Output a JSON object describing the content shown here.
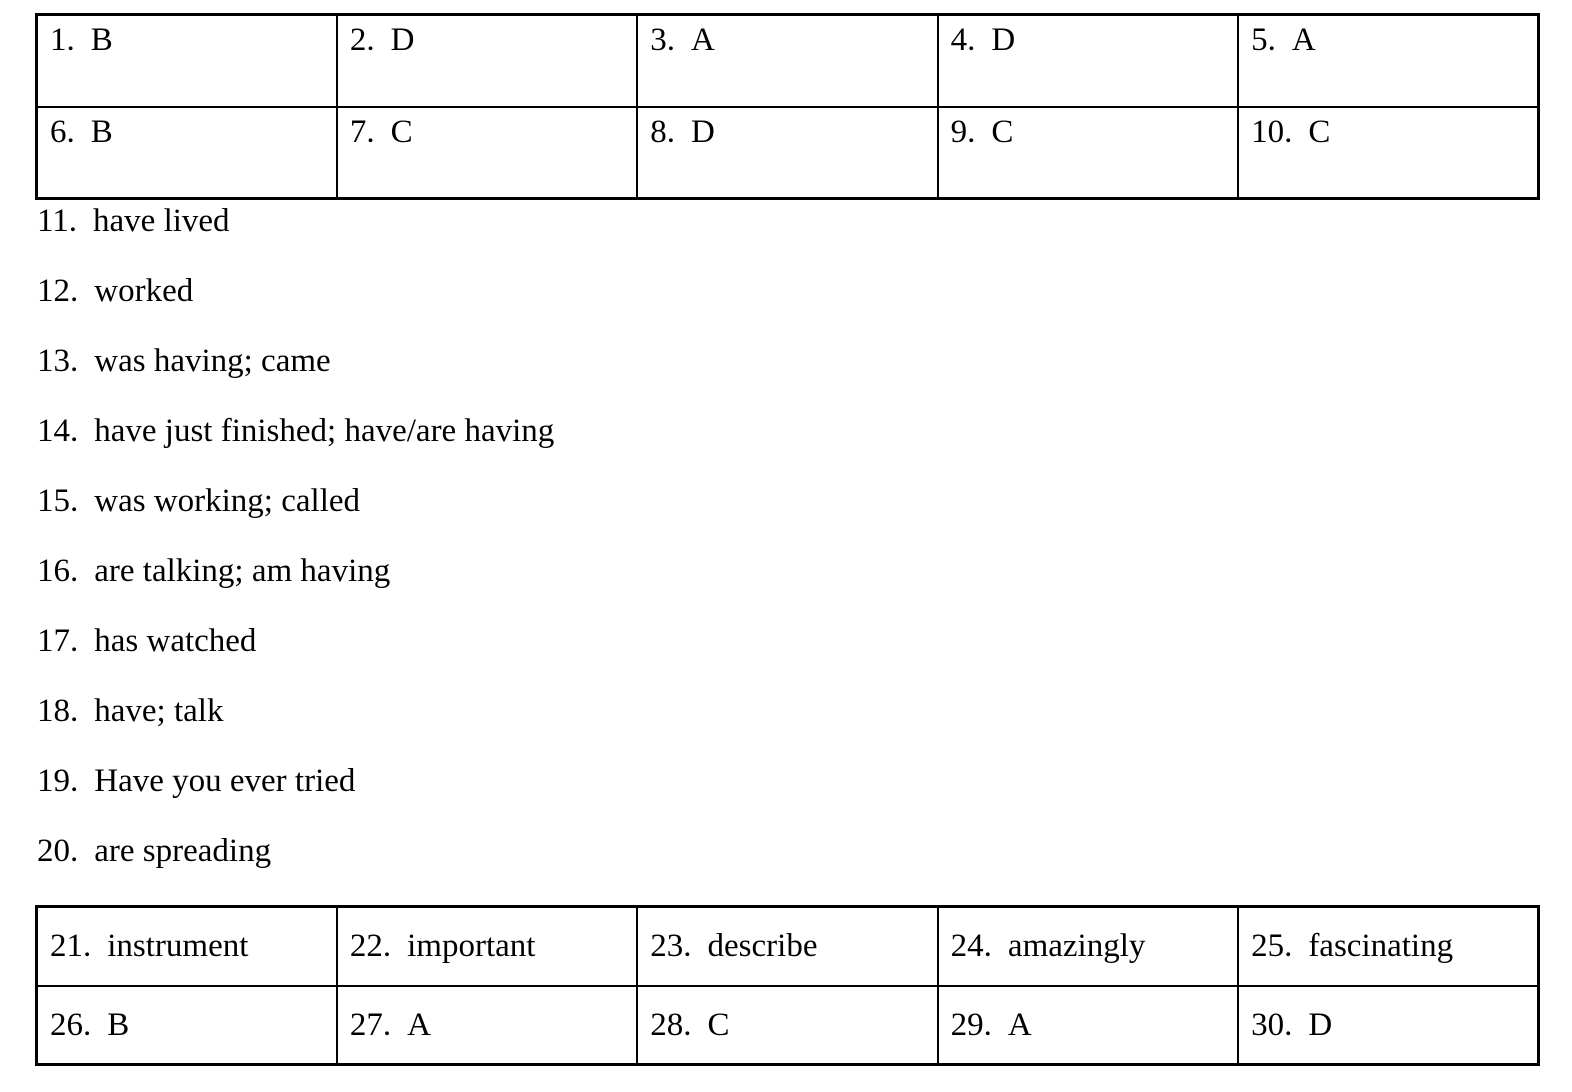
{
  "page": {
    "background_color": "#ffffff",
    "text_color": "#000000"
  },
  "answer_key": {
    "table_top": {
      "rows": [
        [
          {
            "n": "1.",
            "v": "B"
          },
          {
            "n": "2.",
            "v": "D"
          },
          {
            "n": "3.",
            "v": "A"
          },
          {
            "n": "4.",
            "v": "D"
          },
          {
            "n": "5.",
            "v": "A"
          }
        ],
        [
          {
            "n": "6.",
            "v": "B"
          },
          {
            "n": "7.",
            "v": "C"
          },
          {
            "n": "8.",
            "v": "D"
          },
          {
            "n": "9.",
            "v": "C"
          },
          {
            "n": "10.",
            "v": "C"
          }
        ]
      ]
    },
    "list": [
      {
        "n": "11.",
        "v": "have lived"
      },
      {
        "n": "12.",
        "v": "worked"
      },
      {
        "n": "13.",
        "v": "was having; came"
      },
      {
        "n": "14.",
        "v": "have just finished; have/are having"
      },
      {
        "n": "15.",
        "v": "was working; called"
      },
      {
        "n": "16.",
        "v": "are talking; am having"
      },
      {
        "n": "17.",
        "v": "has watched"
      },
      {
        "n": "18.",
        "v": "have; talk"
      },
      {
        "n": "19.",
        "v": "Have you ever tried"
      },
      {
        "n": "20.",
        "v": "are spreading"
      }
    ],
    "table_bottom": {
      "rows": [
        [
          {
            "n": "21.",
            "v": "instrument"
          },
          {
            "n": "22.",
            "v": "important"
          },
          {
            "n": "23.",
            "v": "describe"
          },
          {
            "n": "24.",
            "v": "amazingly"
          },
          {
            "n": "25.",
            "v": "fascinating"
          }
        ],
        [
          {
            "n": "26.",
            "v": "B"
          },
          {
            "n": "27.",
            "v": "A"
          },
          {
            "n": "28.",
            "v": "C"
          },
          {
            "n": "29.",
            "v": "A"
          },
          {
            "n": "30.",
            "v": "D"
          }
        ]
      ]
    }
  }
}
